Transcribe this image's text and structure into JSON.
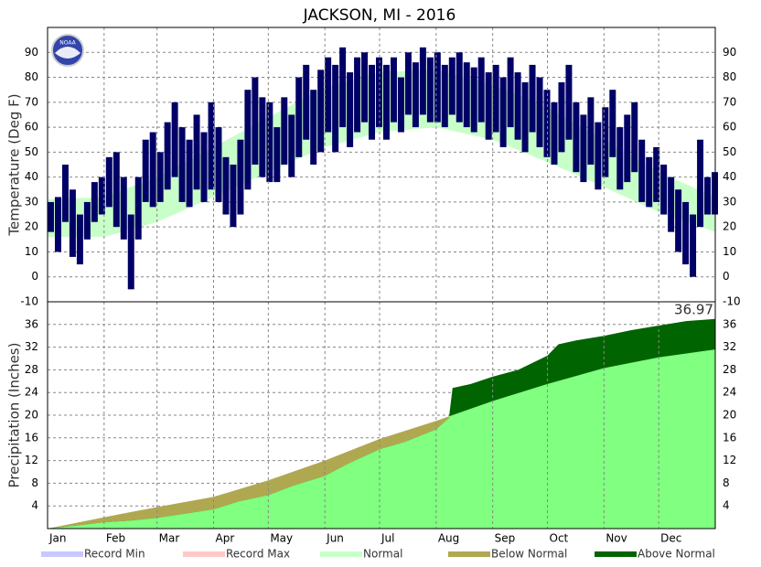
{
  "title": "JACKSON, MI - 2016",
  "logo_text": "NOAA",
  "chart_data": [
    {
      "type": "range_bar",
      "ylabel": "Temperature (Deg F)",
      "xlim": [
        0,
        366
      ],
      "ylim": [
        -10,
        100
      ],
      "yticks": [
        -10,
        0,
        10,
        20,
        30,
        40,
        50,
        60,
        70,
        80,
        90
      ],
      "grid": true,
      "bar_color": "#000066",
      "normal_color": "#c8ffc8",
      "x": [
        0,
        4,
        8,
        12,
        16,
        20,
        24,
        28,
        32,
        36,
        40,
        44,
        48,
        52,
        56,
        60,
        64,
        68,
        72,
        76,
        80,
        84,
        88,
        92,
        96,
        100,
        104,
        108,
        112,
        116,
        120,
        124,
        128,
        132,
        136,
        140,
        144,
        148,
        152,
        156,
        160,
        164,
        168,
        172,
        176,
        180,
        184,
        188,
        192,
        196,
        200,
        204,
        208,
        212,
        216,
        220,
        224,
        228,
        232,
        236,
        240,
        244,
        248,
        252,
        256,
        260,
        264,
        268,
        272,
        276,
        280,
        284,
        288,
        292,
        296,
        300,
        304,
        308,
        312,
        316,
        320,
        324,
        328,
        332,
        336,
        340,
        344,
        348,
        352,
        356,
        360,
        364
      ],
      "highs": [
        30,
        32,
        45,
        35,
        25,
        30,
        38,
        40,
        48,
        50,
        40,
        25,
        40,
        55,
        58,
        50,
        62,
        70,
        60,
        55,
        65,
        58,
        70,
        60,
        48,
        45,
        55,
        75,
        80,
        72,
        70,
        60,
        72,
        65,
        80,
        85,
        75,
        83,
        88,
        85,
        92,
        82,
        88,
        90,
        85,
        88,
        85,
        88,
        80,
        90,
        86,
        92,
        88,
        90,
        85,
        88,
        90,
        86,
        84,
        88,
        82,
        85,
        80,
        88,
        82,
        78,
        85,
        80,
        75,
        70,
        78,
        85,
        70,
        65,
        72,
        62,
        68,
        75,
        60,
        65,
        70,
        55,
        48,
        52,
        45,
        40,
        35,
        30,
        25,
        55,
        40,
        42
      ],
      "lows": [
        18,
        10,
        22,
        8,
        5,
        15,
        22,
        25,
        28,
        20,
        15,
        -5,
        15,
        30,
        28,
        30,
        35,
        40,
        30,
        28,
        35,
        30,
        35,
        30,
        25,
        20,
        25,
        35,
        45,
        40,
        38,
        38,
        45,
        40,
        48,
        55,
        45,
        50,
        58,
        50,
        60,
        52,
        58,
        62,
        55,
        60,
        55,
        62,
        58,
        65,
        60,
        65,
        62,
        62,
        60,
        65,
        62,
        60,
        58,
        62,
        55,
        58,
        52,
        60,
        55,
        50,
        58,
        52,
        48,
        45,
        50,
        55,
        42,
        38,
        45,
        35,
        40,
        48,
        35,
        38,
        42,
        30,
        28,
        30,
        25,
        18,
        10,
        5,
        0,
        20,
        25,
        25
      ],
      "normal_x": [
        0,
        31,
        60,
        91,
        121,
        152,
        182,
        213,
        244,
        274,
        305,
        335,
        366
      ],
      "normal_high": [
        31,
        32,
        40,
        52,
        64,
        76,
        82,
        83,
        77,
        68,
        55,
        42,
        32
      ],
      "normal_low": [
        16,
        16,
        22,
        32,
        42,
        52,
        58,
        60,
        55,
        46,
        36,
        26,
        18
      ]
    },
    {
      "type": "cumulative_area",
      "ylabel": "Precipitation (Inches)",
      "xlim": [
        0,
        366
      ],
      "ylim": [
        0,
        40
      ],
      "yticks": [
        4,
        8,
        12,
        16,
        20,
        24,
        28,
        32,
        36
      ],
      "xticks": [
        {
          "value": 0,
          "label": "Jan"
        },
        {
          "value": 31,
          "label": "Feb"
        },
        {
          "value": 60,
          "label": "Mar"
        },
        {
          "value": 91,
          "label": "Apr"
        },
        {
          "value": 121,
          "label": "May"
        },
        {
          "value": 152,
          "label": "Jun"
        },
        {
          "value": 182,
          "label": "Jul"
        },
        {
          "value": 213,
          "label": "Aug"
        },
        {
          "value": 244,
          "label": "Sep"
        },
        {
          "value": 274,
          "label": "Oct"
        },
        {
          "value": 305,
          "label": "Nov"
        },
        {
          "value": 335,
          "label": "Dec"
        }
      ],
      "grid": true,
      "observed_x": [
        0,
        15,
        31,
        45,
        60,
        75,
        91,
        105,
        121,
        135,
        152,
        165,
        182,
        196,
        213,
        220,
        222,
        232,
        244,
        258,
        274,
        280,
        290,
        305,
        320,
        335,
        350,
        366
      ],
      "observed": [
        0,
        0.5,
        1.1,
        1.4,
        1.9,
        2.6,
        3.4,
        4.8,
        5.9,
        7.6,
        9.3,
        11.5,
        14.0,
        15.3,
        17.5,
        19.5,
        24.8,
        25.5,
        26.8,
        28.0,
        30.5,
        32.5,
        33.2,
        34.0,
        35.0,
        35.8,
        36.6,
        36.97
      ],
      "normal_x": [
        0,
        31,
        60,
        91,
        121,
        152,
        182,
        213,
        244,
        274,
        305,
        335,
        366
      ],
      "normal": [
        0,
        2.0,
        3.8,
        5.6,
        8.5,
        12.0,
        15.8,
        19.0,
        22.5,
        25.5,
        28.3,
        30.2,
        31.6
      ],
      "normal_color": "#80ff80",
      "below_color": "#b0a850",
      "above_color": "#006400"
    }
  ],
  "legend": [
    {
      "label": "Record Min",
      "color": "#c8c8ff"
    },
    {
      "label": "Record Max",
      "color": "#ffc8c8"
    },
    {
      "label": "Normal",
      "color": "#c8ffc8"
    },
    {
      "label": "Below Normal",
      "color": "#b0a850"
    },
    {
      "label": "Above Normal",
      "color": "#006400"
    }
  ]
}
